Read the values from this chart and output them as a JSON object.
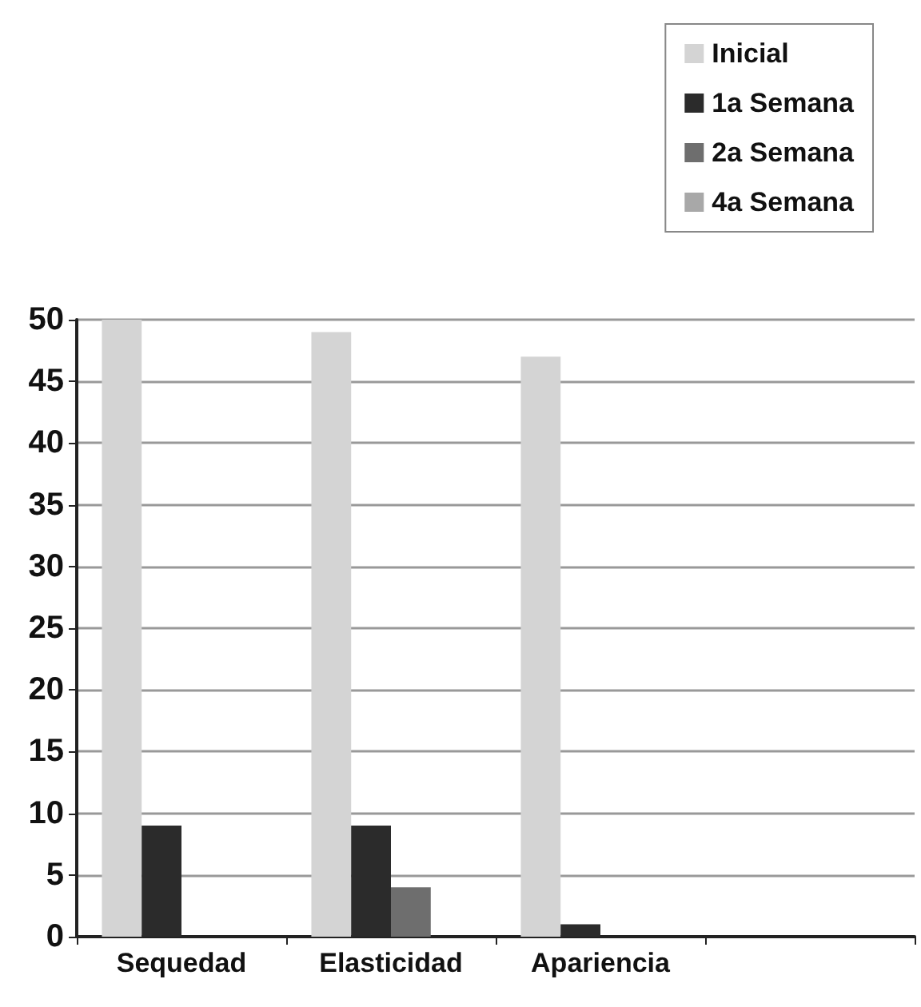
{
  "chart_data": {
    "type": "bar",
    "categories": [
      "Sequedad",
      "Elasticidad",
      "Apariencia",
      null
    ],
    "series": [
      {
        "name": "Inicial",
        "color": "#d4d4d4",
        "values": [
          50,
          49,
          47,
          null
        ]
      },
      {
        "name": "1a Semana",
        "color": "#2b2b2b",
        "values": [
          9,
          9,
          1,
          null
        ]
      },
      {
        "name": "2a Semana",
        "color": "#6e6e6e",
        "values": [
          0,
          4,
          0,
          null
        ]
      },
      {
        "name": "4a Semana",
        "color": "#a8a8a8",
        "values": [
          0,
          0,
          0,
          null
        ]
      }
    ],
    "ylim": [
      0,
      50
    ],
    "yticks": [
      0,
      5,
      10,
      15,
      20,
      25,
      30,
      35,
      40,
      45,
      50
    ],
    "grid": "y",
    "legend": "top right"
  }
}
